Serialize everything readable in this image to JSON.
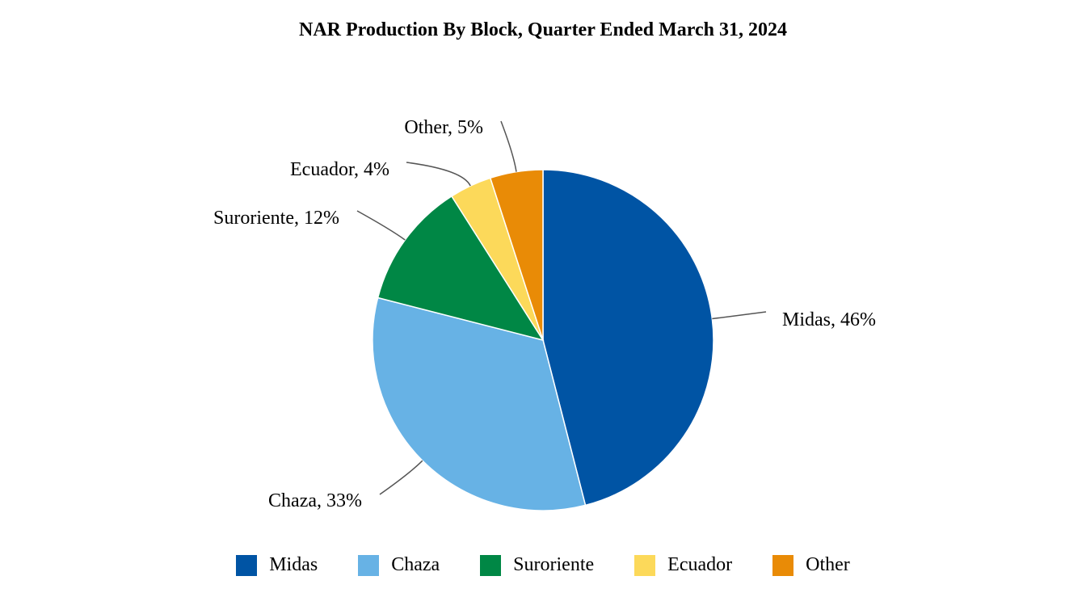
{
  "chart_data": {
    "type": "pie",
    "title": "NAR Production By Block, Quarter Ended March 31, 2024",
    "categories": [
      "Midas",
      "Chaza",
      "Suroriente",
      "Ecuador",
      "Other"
    ],
    "values": [
      46,
      33,
      12,
      4,
      5
    ],
    "data_labels": [
      "Midas, 46%",
      "Chaza, 33%",
      "Suroriente, 12%",
      "Ecuador, 4%",
      "Other, 5%"
    ],
    "colors": [
      "#0054a4",
      "#67b2e5",
      "#008745",
      "#fcd95a",
      "#e98b06"
    ],
    "legend": "bottom"
  }
}
